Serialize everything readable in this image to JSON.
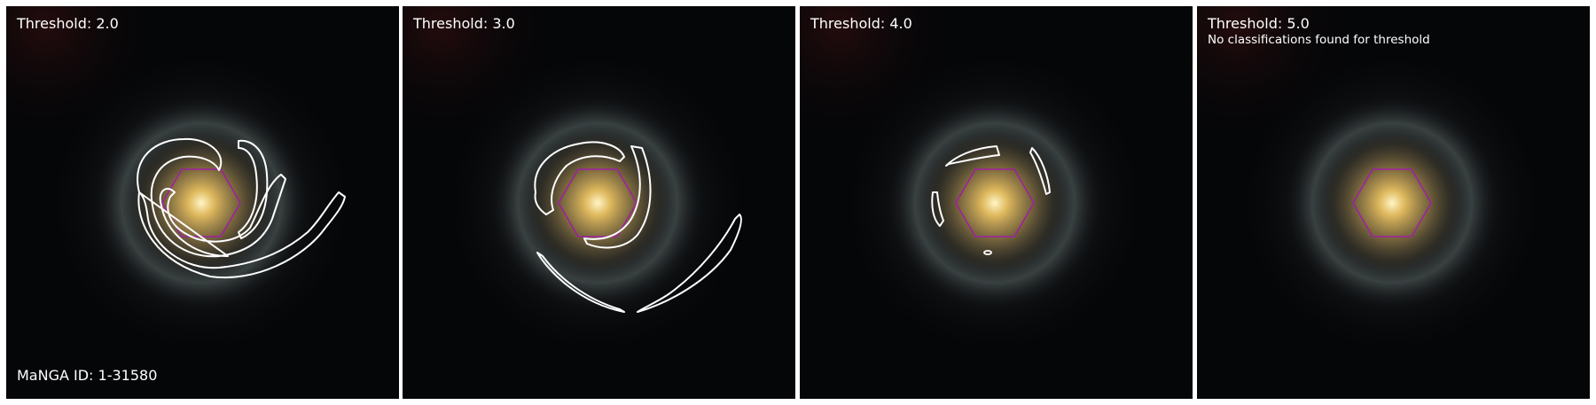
{
  "panels": [
    {
      "threshold_label": "Threshold: 2.0",
      "note": ""
    },
    {
      "threshold_label": "Threshold: 3.0",
      "note": ""
    },
    {
      "threshold_label": "Threshold: 4.0",
      "note": ""
    },
    {
      "threshold_label": "Threshold: 5.0",
      "note": "No classifications found for threshold"
    }
  ],
  "manga_id_label": "MaNGA ID: 1-31580",
  "colors": {
    "contour": "#ffffff",
    "hexagon": "#a020a0",
    "background": "#050608",
    "core": "#e8c060"
  }
}
